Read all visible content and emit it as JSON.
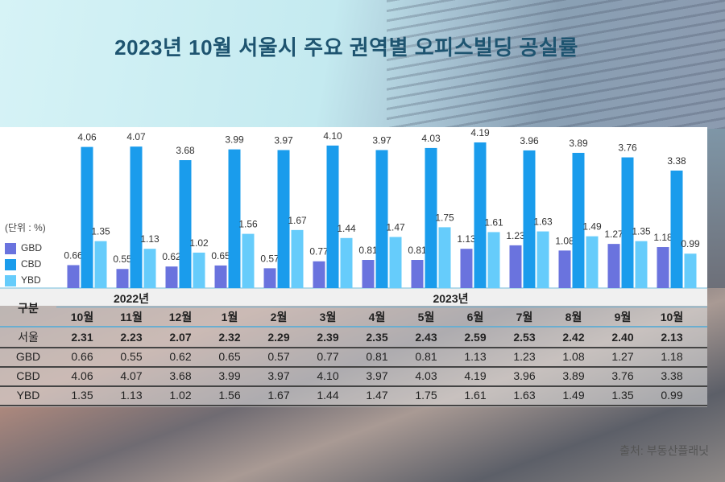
{
  "title": "2023년 10월 서울시 주요 권역별 오피스빌딩 공실률",
  "unit": "(단위 : %)",
  "source": "출처: 부동산플래닛",
  "colors": {
    "GBD": "#6a73de",
    "CBD": "#1a9cec",
    "YBD": "#66ccfb",
    "title": "#1e5470"
  },
  "chart_data": {
    "type": "bar",
    "title": "2023년 10월 서울시 주요 권역별 오피스빌딩 공실률",
    "ylabel": "(단위 : %)",
    "legend": "left",
    "years": [
      {
        "label": "2022년",
        "months": 3
      },
      {
        "label": "2023년",
        "months": 10
      }
    ],
    "categories": [
      "10월",
      "11월",
      "12월",
      "1월",
      "2월",
      "3월",
      "4월",
      "5월",
      "6월",
      "7월",
      "8월",
      "9월",
      "10월"
    ],
    "series": [
      {
        "name": "GBD",
        "values": [
          0.66,
          0.55,
          0.62,
          0.65,
          0.57,
          0.77,
          0.81,
          0.81,
          1.13,
          1.23,
          1.08,
          1.27,
          1.18
        ]
      },
      {
        "name": "CBD",
        "values": [
          4.06,
          4.07,
          3.68,
          3.99,
          3.97,
          4.1,
          3.97,
          4.03,
          4.19,
          3.96,
          3.89,
          3.76,
          3.38
        ]
      },
      {
        "name": "YBD",
        "values": [
          1.35,
          1.13,
          1.02,
          1.56,
          1.67,
          1.44,
          1.47,
          1.75,
          1.61,
          1.63,
          1.49,
          1.35,
          0.99
        ]
      }
    ]
  },
  "table": {
    "header": "구분",
    "rows": [
      {
        "label": "서울",
        "values": [
          "2.31",
          "2.23",
          "2.07",
          "2.32",
          "2.29",
          "2.39",
          "2.35",
          "2.43",
          "2.59",
          "2.53",
          "2.42",
          "2.40",
          "2.13"
        ]
      },
      {
        "label": "GBD",
        "values": [
          "0.66",
          "0.55",
          "0.62",
          "0.65",
          "0.57",
          "0.77",
          "0.81",
          "0.81",
          "1.13",
          "1.23",
          "1.08",
          "1.27",
          "1.18"
        ]
      },
      {
        "label": "CBD",
        "values": [
          "4.06",
          "4.07",
          "3.68",
          "3.99",
          "3.97",
          "4.10",
          "3.97",
          "4.03",
          "4.19",
          "3.96",
          "3.89",
          "3.76",
          "3.38"
        ]
      },
      {
        "label": "YBD",
        "values": [
          "1.35",
          "1.13",
          "1.02",
          "1.56",
          "1.67",
          "1.44",
          "1.47",
          "1.75",
          "1.61",
          "1.63",
          "1.49",
          "1.35",
          "0.99"
        ]
      }
    ]
  }
}
